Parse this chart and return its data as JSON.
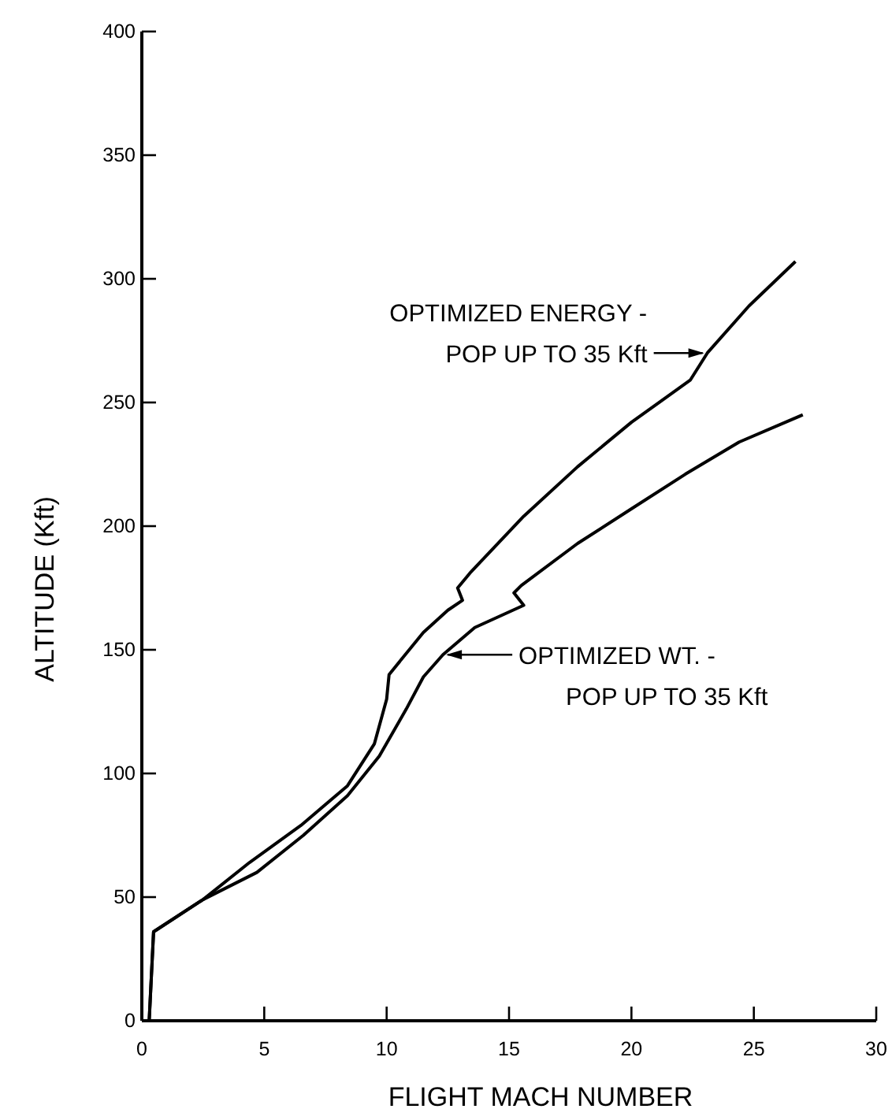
{
  "chart_data": {
    "type": "line",
    "xlabel": "FLIGHT MACH NUMBER",
    "ylabel": "ALTITUDE (Kft)",
    "xlim": [
      0,
      30
    ],
    "xticks": [
      0,
      5,
      10,
      15,
      20,
      25,
      30
    ],
    "ylim": [
      0,
      400
    ],
    "yticks": [
      0,
      50,
      100,
      150,
      200,
      250,
      300,
      350,
      400
    ],
    "grid": false,
    "legend": "right",
    "marker": "none",
    "line_style": "solid",
    "series": [
      {
        "name": "OPTIMIZED ENERGY -\nPOP UP TO 35 Kft",
        "color": "#000000",
        "x": [
          0.3,
          0.48,
          2.5,
          4.4,
          6.5,
          8.4,
          9.5,
          10.0,
          10.1,
          11.5,
          12.5,
          13.1,
          12.9,
          13.4,
          15.6,
          17.8,
          20.0,
          22.4,
          23.1,
          24.8,
          26.7
        ],
        "values": [
          0,
          36,
          49,
          64,
          79,
          95,
          112,
          130,
          140,
          157,
          166,
          170,
          175,
          181,
          204,
          224,
          242,
          259,
          270,
          289,
          307
        ]
      },
      {
        "name": "OPTIMIZED WT. -\nPOP UP TO 35 Kft",
        "color": "#000000",
        "x": [
          0.3,
          0.48,
          2.5,
          4.7,
          6.6,
          8.4,
          9.7,
          10.8,
          11.5,
          12.3,
          13.6,
          15.6,
          15.2,
          15.5,
          17.8,
          20.0,
          22.2,
          24.4,
          27.0
        ],
        "values": [
          0,
          36,
          49,
          60,
          75,
          91,
          107,
          126,
          139,
          148,
          159,
          168,
          173,
          176,
          193,
          207,
          221,
          234,
          245
        ]
      }
    ]
  }
}
